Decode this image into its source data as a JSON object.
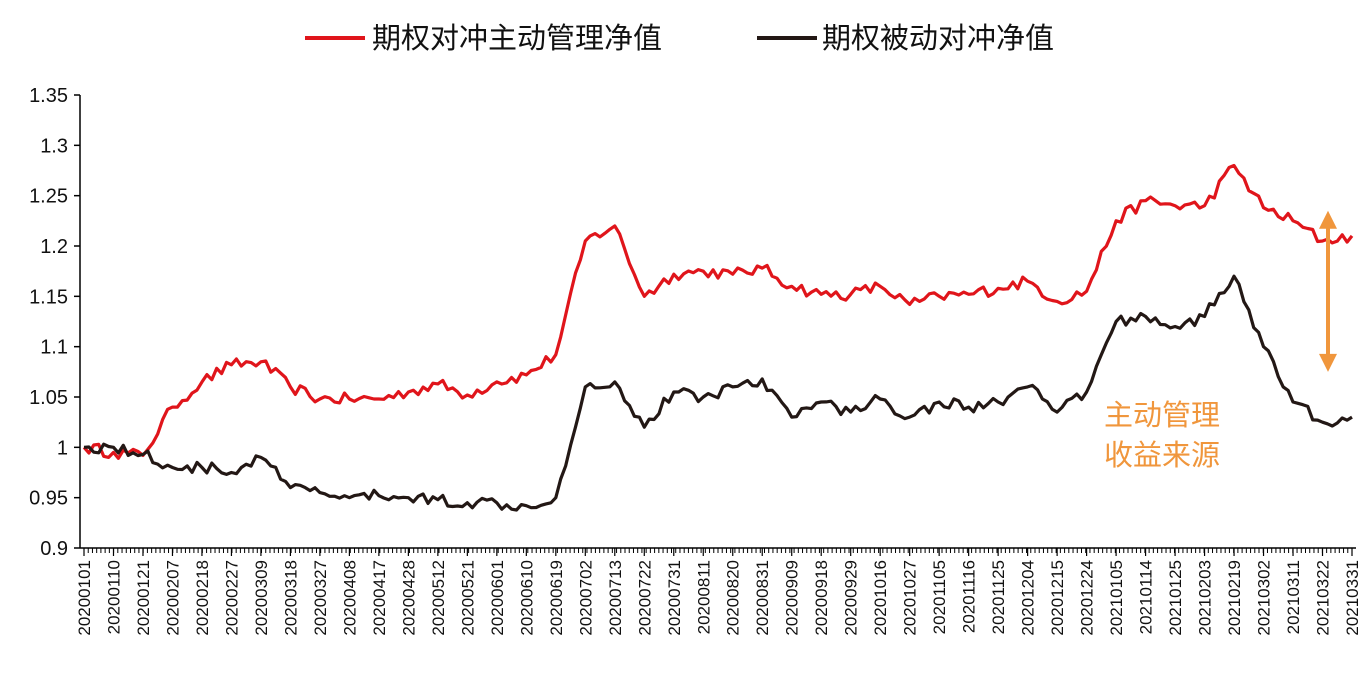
{
  "chart_data": {
    "type": "line",
    "title": "",
    "xlabel": "",
    "ylabel": "",
    "ylim": [
      0.9,
      1.35
    ],
    "yticks": [
      "1.35",
      "1.3",
      "1.25",
      "1.2",
      "1.15",
      "1.1",
      "1.05",
      "1",
      "0.95",
      "0.9"
    ],
    "grid": false,
    "legend": {
      "position": "top"
    },
    "x": [
      "20200101",
      "20200110",
      "20200121",
      "20200207",
      "20200218",
      "20200227",
      "20200309",
      "20200318",
      "20200327",
      "20200408",
      "20200417",
      "20200428",
      "20200512",
      "20200521",
      "20200601",
      "20200610",
      "20200619",
      "20200702",
      "20200713",
      "20200722",
      "20200731",
      "20200811",
      "20200820",
      "20200831",
      "20200909",
      "20200918",
      "20200929",
      "20201016",
      "20201027",
      "20201105",
      "20201116",
      "20201125",
      "20201204",
      "20201215",
      "20201224",
      "20210105",
      "20210114",
      "20210125",
      "20210203",
      "20210219",
      "20210302",
      "20210311",
      "20210322",
      "20210331"
    ],
    "series": [
      {
        "name": "期权对冲主动管理净值",
        "color": "#E0151B",
        "values": [
          1.0,
          0.995,
          0.992,
          1.04,
          1.065,
          1.082,
          1.085,
          1.06,
          1.048,
          1.048,
          1.048,
          1.055,
          1.063,
          1.052,
          1.065,
          1.072,
          1.092,
          1.205,
          1.22,
          1.15,
          1.172,
          1.175,
          1.172,
          1.178,
          1.16,
          1.152,
          1.152,
          1.16,
          1.142,
          1.15,
          1.152,
          1.158,
          1.165,
          1.145,
          1.155,
          1.225,
          1.245,
          1.24,
          1.24,
          1.28,
          1.238,
          1.225,
          1.205,
          1.21
        ]
      },
      {
        "name": "期权被动对冲净值",
        "color": "#231815",
        "values": [
          1.0,
          1.0,
          0.993,
          0.98,
          0.98,
          0.975,
          0.99,
          0.96,
          0.955,
          0.95,
          0.952,
          0.95,
          0.948,
          0.945,
          0.945,
          0.942,
          0.95,
          1.06,
          1.065,
          1.02,
          1.055,
          1.05,
          1.06,
          1.068,
          1.03,
          1.045,
          1.035,
          1.048,
          1.03,
          1.045,
          1.04,
          1.045,
          1.06,
          1.035,
          1.055,
          1.125,
          1.13,
          1.12,
          1.13,
          1.17,
          1.1,
          1.045,
          1.025,
          1.03
        ]
      }
    ],
    "annotation": {
      "lines": [
        "主动管理",
        "收益来源"
      ],
      "color": "#F0963C",
      "arrow_range": [
        1.075,
        1.235
      ]
    }
  }
}
